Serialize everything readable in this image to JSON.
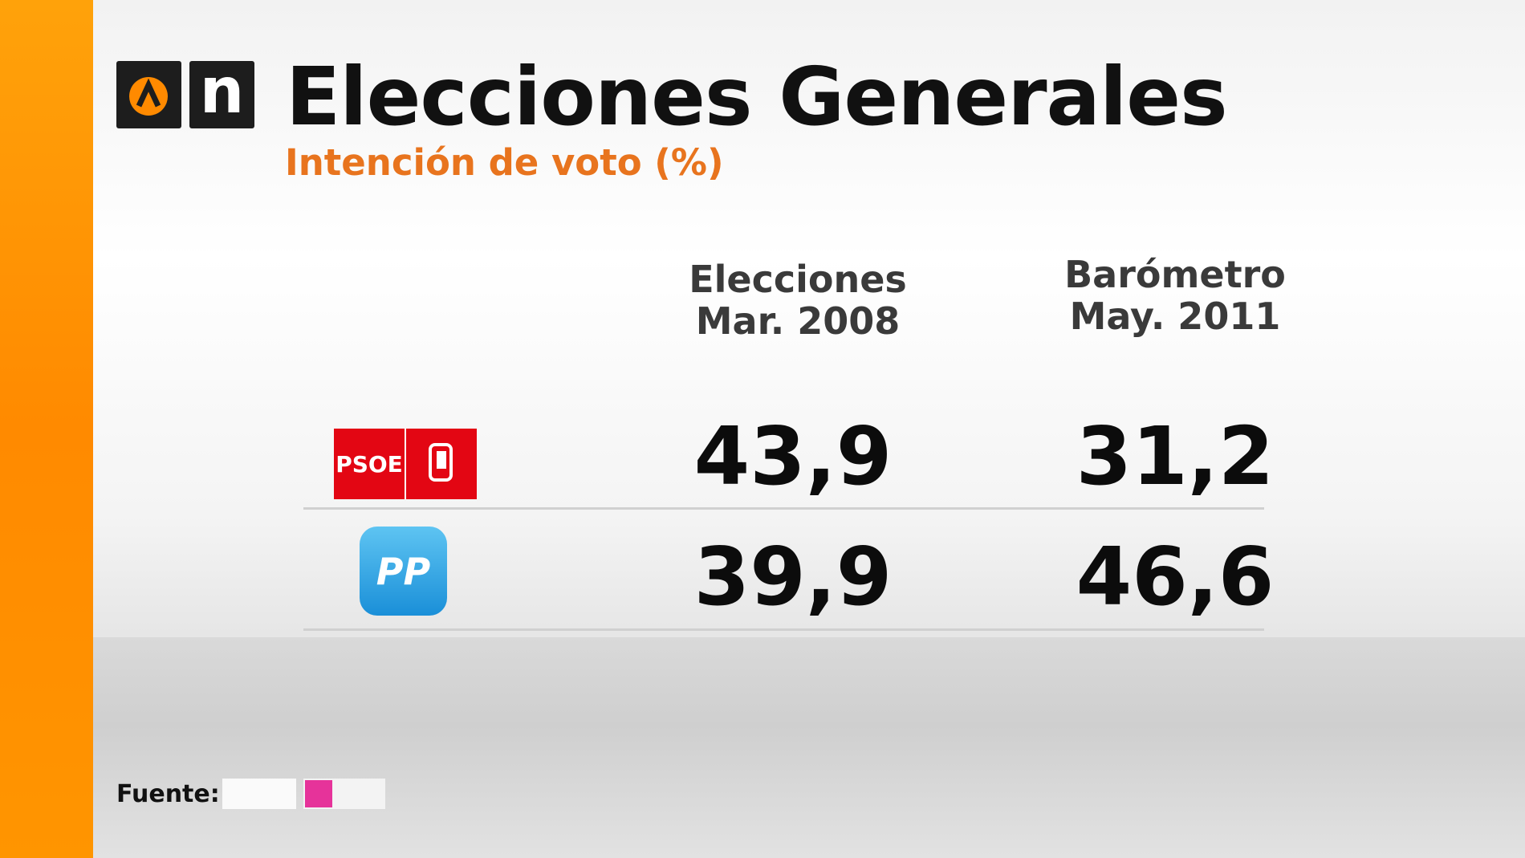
{
  "header": {
    "logo": "n",
    "title": "Elecciones Generales",
    "subtitle": "Intención de voto (%)"
  },
  "table": {
    "columns": [
      [
        "Elecciones",
        "Mar. 2008"
      ],
      [
        "Barómetro",
        "May. 2011"
      ]
    ],
    "rows": [
      {
        "party": "PSOE",
        "values": [
          "43,9",
          "31,2"
        ]
      },
      {
        "party": "PP",
        "values": [
          "39,9",
          "46,6"
        ]
      }
    ]
  },
  "footer": {
    "source_label": "Fuente:"
  }
}
